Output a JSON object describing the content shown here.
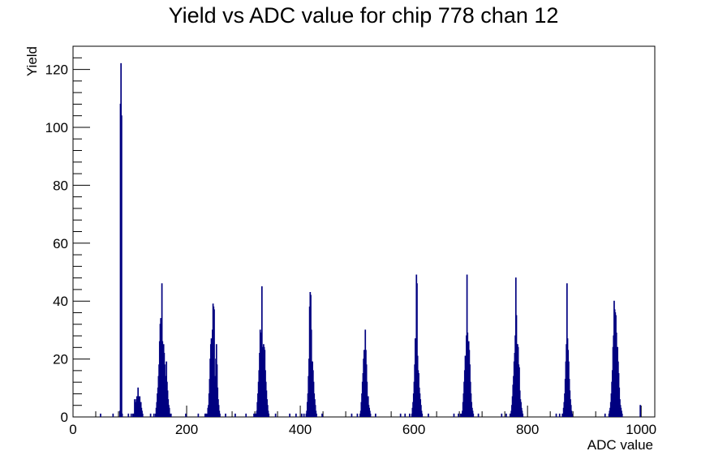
{
  "chart_data": {
    "type": "histogram",
    "title": "Yield vs ADC value for chip 778 chan 12",
    "xlabel": "ADC value",
    "ylabel": "Yield",
    "xlim": [
      0,
      1024
    ],
    "ylim": [
      0,
      128
    ],
    "x_ticks": [
      0,
      200,
      400,
      600,
      800,
      1000
    ],
    "y_ticks": [
      0,
      20,
      40,
      60,
      80,
      100,
      120
    ],
    "grid": false,
    "legend": "none",
    "line_color": "#000080",
    "bin_width": 1,
    "bins": [
      [
        48,
        1
      ],
      [
        70,
        1
      ],
      [
        82,
        2
      ],
      [
        83,
        108
      ],
      [
        84,
        122
      ],
      [
        85,
        104
      ],
      [
        86,
        1
      ],
      [
        97,
        1
      ],
      [
        102,
        1
      ],
      [
        105,
        1
      ],
      [
        106,
        1
      ],
      [
        108,
        6
      ],
      [
        110,
        5
      ],
      [
        111,
        6
      ],
      [
        112,
        7
      ],
      [
        113,
        5
      ],
      [
        114,
        10
      ],
      [
        115,
        7
      ],
      [
        116,
        6
      ],
      [
        117,
        7
      ],
      [
        118,
        4
      ],
      [
        119,
        5
      ],
      [
        120,
        3
      ],
      [
        121,
        2
      ],
      [
        122,
        1
      ],
      [
        136,
        1
      ],
      [
        142,
        1
      ],
      [
        145,
        1
      ],
      [
        146,
        3
      ],
      [
        147,
        5
      ],
      [
        148,
        8
      ],
      [
        149,
        10
      ],
      [
        150,
        14
      ],
      [
        151,
        18
      ],
      [
        152,
        26
      ],
      [
        153,
        32
      ],
      [
        154,
        34
      ],
      [
        155,
        30
      ],
      [
        156,
        46
      ],
      [
        157,
        26
      ],
      [
        158,
        23
      ],
      [
        159,
        25
      ],
      [
        160,
        22
      ],
      [
        161,
        18
      ],
      [
        162,
        11
      ],
      [
        163,
        14
      ],
      [
        164,
        19
      ],
      [
        165,
        12
      ],
      [
        166,
        9
      ],
      [
        167,
        6
      ],
      [
        168,
        4
      ],
      [
        169,
        3
      ],
      [
        170,
        1
      ],
      [
        172,
        1
      ],
      [
        198,
        1
      ],
      [
        220,
        1
      ],
      [
        232,
        1
      ],
      [
        234,
        1
      ],
      [
        236,
        1
      ],
      [
        237,
        3
      ],
      [
        238,
        4
      ],
      [
        239,
        8
      ],
      [
        240,
        13
      ],
      [
        241,
        20
      ],
      [
        242,
        25
      ],
      [
        243,
        27
      ],
      [
        244,
        22
      ],
      [
        245,
        30
      ],
      [
        246,
        39
      ],
      [
        247,
        38
      ],
      [
        248,
        37
      ],
      [
        249,
        12
      ],
      [
        250,
        14
      ],
      [
        251,
        20
      ],
      [
        252,
        25
      ],
      [
        253,
        18
      ],
      [
        254,
        10
      ],
      [
        255,
        6
      ],
      [
        256,
        4
      ],
      [
        257,
        2
      ],
      [
        258,
        1
      ],
      [
        268,
        1
      ],
      [
        285,
        1
      ],
      [
        304,
        1
      ],
      [
        318,
        1
      ],
      [
        320,
        1
      ],
      [
        322,
        1
      ],
      [
        323,
        2
      ],
      [
        324,
        5
      ],
      [
        325,
        8
      ],
      [
        326,
        12
      ],
      [
        327,
        16
      ],
      [
        328,
        22
      ],
      [
        329,
        30
      ],
      [
        330,
        26
      ],
      [
        331,
        29
      ],
      [
        332,
        45
      ],
      [
        333,
        24
      ],
      [
        334,
        20
      ],
      [
        335,
        25
      ],
      [
        336,
        24
      ],
      [
        337,
        23
      ],
      [
        338,
        16
      ],
      [
        339,
        12
      ],
      [
        340,
        9
      ],
      [
        341,
        6
      ],
      [
        342,
        4
      ],
      [
        343,
        2
      ],
      [
        344,
        1
      ],
      [
        356,
        1
      ],
      [
        381,
        1
      ],
      [
        392,
        1
      ],
      [
        402,
        1
      ],
      [
        406,
        1
      ],
      [
        410,
        1
      ],
      [
        411,
        2
      ],
      [
        412,
        5
      ],
      [
        413,
        8
      ],
      [
        414,
        14
      ],
      [
        415,
        20
      ],
      [
        416,
        38
      ],
      [
        417,
        43
      ],
      [
        418,
        42
      ],
      [
        419,
        30
      ],
      [
        420,
        19
      ],
      [
        421,
        19
      ],
      [
        422,
        16
      ],
      [
        423,
        12
      ],
      [
        424,
        8
      ],
      [
        425,
        6
      ],
      [
        426,
        4
      ],
      [
        427,
        2
      ],
      [
        428,
        1
      ],
      [
        438,
        1
      ],
      [
        490,
        1
      ],
      [
        500,
        1
      ],
      [
        505,
        1
      ],
      [
        506,
        2
      ],
      [
        507,
        5
      ],
      [
        508,
        8
      ],
      [
        509,
        12
      ],
      [
        510,
        15
      ],
      [
        511,
        20
      ],
      [
        512,
        23
      ],
      [
        513,
        21
      ],
      [
        514,
        30
      ],
      [
        515,
        23
      ],
      [
        516,
        18
      ],
      [
        517,
        12
      ],
      [
        518,
        6
      ],
      [
        519,
        7
      ],
      [
        520,
        4
      ],
      [
        521,
        3
      ],
      [
        522,
        2
      ],
      [
        523,
        1
      ],
      [
        532,
        1
      ],
      [
        576,
        1
      ],
      [
        584,
        1
      ],
      [
        592,
        1
      ],
      [
        596,
        1
      ],
      [
        597,
        3
      ],
      [
        598,
        5
      ],
      [
        599,
        8
      ],
      [
        600,
        12
      ],
      [
        601,
        18
      ],
      [
        602,
        27
      ],
      [
        603,
        25
      ],
      [
        604,
        49
      ],
      [
        605,
        46
      ],
      [
        606,
        21
      ],
      [
        607,
        16
      ],
      [
        608,
        15
      ],
      [
        609,
        10
      ],
      [
        610,
        8
      ],
      [
        611,
        6
      ],
      [
        612,
        4
      ],
      [
        613,
        2
      ],
      [
        614,
        1
      ],
      [
        625,
        1
      ],
      [
        670,
        1
      ],
      [
        678,
        1
      ],
      [
        682,
        1
      ],
      [
        684,
        1
      ],
      [
        685,
        2
      ],
      [
        686,
        5
      ],
      [
        687,
        8
      ],
      [
        688,
        12
      ],
      [
        689,
        16
      ],
      [
        690,
        21
      ],
      [
        691,
        19
      ],
      [
        692,
        28
      ],
      [
        693,
        49
      ],
      [
        694,
        29
      ],
      [
        695,
        16
      ],
      [
        696,
        26
      ],
      [
        697,
        23
      ],
      [
        698,
        18
      ],
      [
        699,
        12
      ],
      [
        700,
        8
      ],
      [
        701,
        5
      ],
      [
        702,
        3
      ],
      [
        703,
        2
      ],
      [
        704,
        1
      ],
      [
        713,
        1
      ],
      [
        754,
        1
      ],
      [
        762,
        1
      ],
      [
        769,
        1
      ],
      [
        770,
        1
      ],
      [
        771,
        2
      ],
      [
        772,
        4
      ],
      [
        773,
        7
      ],
      [
        774,
        11
      ],
      [
        775,
        14
      ],
      [
        776,
        19
      ],
      [
        777,
        22
      ],
      [
        778,
        28
      ],
      [
        779,
        48
      ],
      [
        780,
        35
      ],
      [
        781,
        25
      ],
      [
        782,
        25
      ],
      [
        783,
        24
      ],
      [
        784,
        18
      ],
      [
        785,
        17
      ],
      [
        786,
        9
      ],
      [
        787,
        6
      ],
      [
        788,
        5
      ],
      [
        789,
        3
      ],
      [
        790,
        2
      ],
      [
        791,
        1
      ],
      [
        850,
        1
      ],
      [
        856,
        1
      ],
      [
        861,
        1
      ],
      [
        862,
        1
      ],
      [
        863,
        3
      ],
      [
        864,
        5
      ],
      [
        865,
        8
      ],
      [
        866,
        13
      ],
      [
        867,
        19
      ],
      [
        868,
        25
      ],
      [
        869,
        46
      ],
      [
        870,
        27
      ],
      [
        871,
        23
      ],
      [
        872,
        19
      ],
      [
        873,
        13
      ],
      [
        874,
        9
      ],
      [
        875,
        6
      ],
      [
        876,
        4
      ],
      [
        877,
        2
      ],
      [
        878,
        1
      ],
      [
        936,
        1
      ],
      [
        943,
        1
      ],
      [
        944,
        2
      ],
      [
        945,
        3
      ],
      [
        946,
        5
      ],
      [
        947,
        8
      ],
      [
        948,
        12
      ],
      [
        949,
        16
      ],
      [
        950,
        24
      ],
      [
        951,
        28
      ],
      [
        952,
        40
      ],
      [
        953,
        37
      ],
      [
        954,
        36
      ],
      [
        955,
        35
      ],
      [
        956,
        29
      ],
      [
        957,
        22
      ],
      [
        958,
        24
      ],
      [
        959,
        19
      ],
      [
        960,
        15
      ],
      [
        961,
        10
      ],
      [
        962,
        6
      ],
      [
        963,
        4
      ],
      [
        964,
        3
      ],
      [
        965,
        2
      ],
      [
        966,
        1
      ],
      [
        998,
        4
      ]
    ]
  }
}
